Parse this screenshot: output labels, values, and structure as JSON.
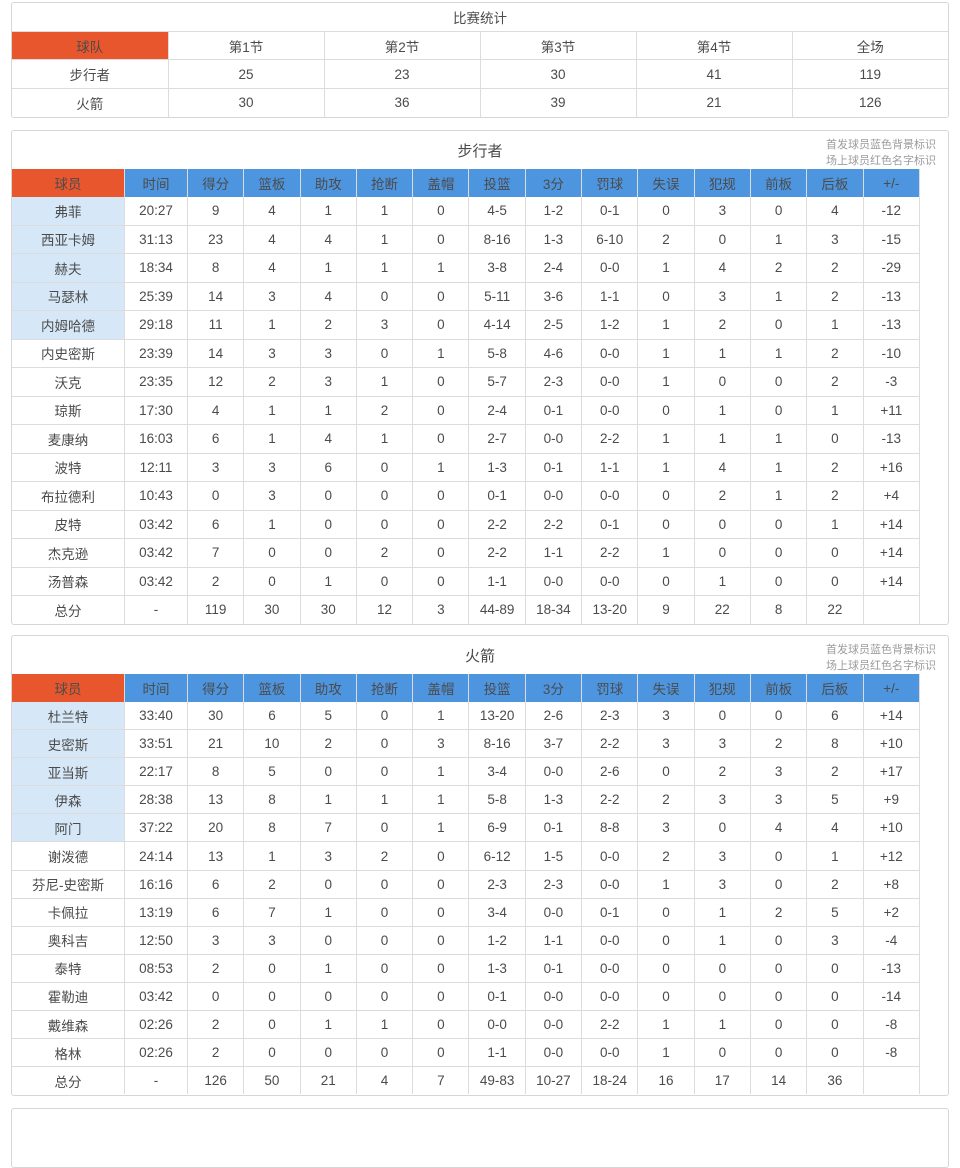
{
  "summary": {
    "title": "比赛统计",
    "columns": [
      "球队",
      "第1节",
      "第2节",
      "第3节",
      "第4节",
      "全场"
    ],
    "rows": [
      [
        "步行者",
        "25",
        "23",
        "30",
        "41",
        "119"
      ],
      [
        "火箭",
        "30",
        "36",
        "39",
        "21",
        "126"
      ]
    ]
  },
  "legend": {
    "line1": "首发球员蓝色背景标识",
    "line2": "场上球员红色名字标识"
  },
  "stat_columns": [
    "球员",
    "时间",
    "得分",
    "篮板",
    "助攻",
    "抢断",
    "盖帽",
    "投篮",
    "3分",
    "罚球",
    "失误",
    "犯规",
    "前板",
    "后板",
    "+/-"
  ],
  "teams": [
    {
      "title": "步行者",
      "starter_count": 5,
      "rows": [
        [
          "弗菲",
          "20:27",
          "9",
          "4",
          "1",
          "1",
          "0",
          "4-5",
          "1-2",
          "0-1",
          "0",
          "3",
          "0",
          "4",
          "-12"
        ],
        [
          "西亚卡姆",
          "31:13",
          "23",
          "4",
          "4",
          "1",
          "0",
          "8-16",
          "1-3",
          "6-10",
          "2",
          "0",
          "1",
          "3",
          "-15"
        ],
        [
          "赫夫",
          "18:34",
          "8",
          "4",
          "1",
          "1",
          "1",
          "3-8",
          "2-4",
          "0-0",
          "1",
          "4",
          "2",
          "2",
          "-29"
        ],
        [
          "马瑟林",
          "25:39",
          "14",
          "3",
          "4",
          "0",
          "0",
          "5-11",
          "3-6",
          "1-1",
          "0",
          "3",
          "1",
          "2",
          "-13"
        ],
        [
          "内姆哈德",
          "29:18",
          "11",
          "1",
          "2",
          "3",
          "0",
          "4-14",
          "2-5",
          "1-2",
          "1",
          "2",
          "0",
          "1",
          "-13"
        ],
        [
          "内史密斯",
          "23:39",
          "14",
          "3",
          "3",
          "0",
          "1",
          "5-8",
          "4-6",
          "0-0",
          "1",
          "1",
          "1",
          "2",
          "-10"
        ],
        [
          "沃克",
          "23:35",
          "12",
          "2",
          "3",
          "1",
          "0",
          "5-7",
          "2-3",
          "0-0",
          "1",
          "0",
          "0",
          "2",
          "-3"
        ],
        [
          "琼斯",
          "17:30",
          "4",
          "1",
          "1",
          "2",
          "0",
          "2-4",
          "0-1",
          "0-0",
          "0",
          "1",
          "0",
          "1",
          "+11"
        ],
        [
          "麦康纳",
          "16:03",
          "6",
          "1",
          "4",
          "1",
          "0",
          "2-7",
          "0-0",
          "2-2",
          "1",
          "1",
          "1",
          "0",
          "-13"
        ],
        [
          "波特",
          "12:11",
          "3",
          "3",
          "6",
          "0",
          "1",
          "1-3",
          "0-1",
          "1-1",
          "1",
          "4",
          "1",
          "2",
          "+16"
        ],
        [
          "布拉德利",
          "10:43",
          "0",
          "3",
          "0",
          "0",
          "0",
          "0-1",
          "0-0",
          "0-0",
          "0",
          "2",
          "1",
          "2",
          "+4"
        ],
        [
          "皮特",
          "03:42",
          "6",
          "1",
          "0",
          "0",
          "0",
          "2-2",
          "2-2",
          "0-1",
          "0",
          "0",
          "0",
          "1",
          "+14"
        ],
        [
          "杰克逊",
          "03:42",
          "7",
          "0",
          "0",
          "2",
          "0",
          "2-2",
          "1-1",
          "2-2",
          "1",
          "0",
          "0",
          "0",
          "+14"
        ],
        [
          "汤普森",
          "03:42",
          "2",
          "0",
          "1",
          "0",
          "0",
          "1-1",
          "0-0",
          "0-0",
          "0",
          "1",
          "0",
          "0",
          "+14"
        ],
        [
          "总分",
          "-",
          "119",
          "30",
          "30",
          "12",
          "3",
          "44-89",
          "18-34",
          "13-20",
          "9",
          "22",
          "8",
          "22",
          ""
        ]
      ]
    },
    {
      "title": "火箭",
      "starter_count": 5,
      "rows": [
        [
          "杜兰特",
          "33:40",
          "30",
          "6",
          "5",
          "0",
          "1",
          "13-20",
          "2-6",
          "2-3",
          "3",
          "0",
          "0",
          "6",
          "+14"
        ],
        [
          "史密斯",
          "33:51",
          "21",
          "10",
          "2",
          "0",
          "3",
          "8-16",
          "3-7",
          "2-2",
          "3",
          "3",
          "2",
          "8",
          "+10"
        ],
        [
          "亚当斯",
          "22:17",
          "8",
          "5",
          "0",
          "0",
          "1",
          "3-4",
          "0-0",
          "2-6",
          "0",
          "2",
          "3",
          "2",
          "+17"
        ],
        [
          "伊森",
          "28:38",
          "13",
          "8",
          "1",
          "1",
          "1",
          "5-8",
          "1-3",
          "2-2",
          "2",
          "3",
          "3",
          "5",
          "+9"
        ],
        [
          "阿门",
          "37:22",
          "20",
          "8",
          "7",
          "0",
          "1",
          "6-9",
          "0-1",
          "8-8",
          "3",
          "0",
          "4",
          "4",
          "+10"
        ],
        [
          "谢泼德",
          "24:14",
          "13",
          "1",
          "3",
          "2",
          "0",
          "6-12",
          "1-5",
          "0-0",
          "2",
          "3",
          "0",
          "1",
          "+12"
        ],
        [
          "芬尼-史密斯",
          "16:16",
          "6",
          "2",
          "0",
          "0",
          "0",
          "2-3",
          "2-3",
          "0-0",
          "1",
          "3",
          "0",
          "2",
          "+8"
        ],
        [
          "卡佩拉",
          "13:19",
          "6",
          "7",
          "1",
          "0",
          "0",
          "3-4",
          "0-0",
          "0-1",
          "0",
          "1",
          "2",
          "5",
          "+2"
        ],
        [
          "奥科吉",
          "12:50",
          "3",
          "3",
          "0",
          "0",
          "0",
          "1-2",
          "1-1",
          "0-0",
          "0",
          "1",
          "0",
          "3",
          "-4"
        ],
        [
          "泰特",
          "08:53",
          "2",
          "0",
          "1",
          "0",
          "0",
          "1-3",
          "0-1",
          "0-0",
          "0",
          "0",
          "0",
          "0",
          "-13"
        ],
        [
          "霍勒迪",
          "03:42",
          "0",
          "0",
          "0",
          "0",
          "0",
          "0-1",
          "0-0",
          "0-0",
          "0",
          "0",
          "0",
          "0",
          "-14"
        ],
        [
          "戴维森",
          "02:26",
          "2",
          "0",
          "1",
          "1",
          "0",
          "0-0",
          "0-0",
          "2-2",
          "1",
          "1",
          "0",
          "0",
          "-8"
        ],
        [
          "格林",
          "02:26",
          "2",
          "0",
          "0",
          "0",
          "0",
          "1-1",
          "0-0",
          "0-0",
          "1",
          "0",
          "0",
          "0",
          "-8"
        ],
        [
          "总分",
          "-",
          "126",
          "50",
          "21",
          "4",
          "7",
          "49-83",
          "10-27",
          "18-24",
          "16",
          "17",
          "14",
          "36",
          ""
        ]
      ]
    }
  ],
  "colors": {
    "header_orange": "#e8562d",
    "header_blue": "#4e95df",
    "starter_row_blue": "#d6e8f7",
    "border_gray": "#dcdcdc",
    "note_gray": "#9c9c9c"
  }
}
